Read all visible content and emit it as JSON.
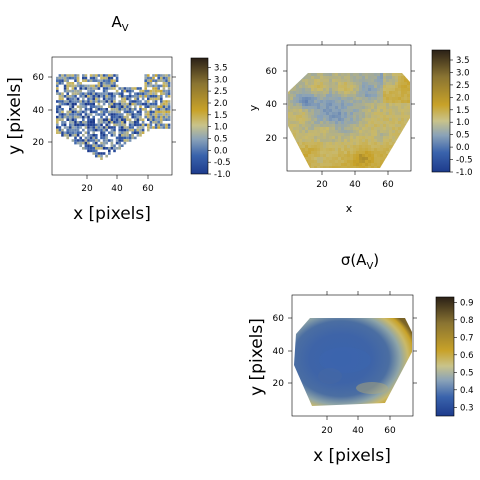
{
  "panels": [
    {
      "id": "av-raw",
      "title_main": "A",
      "title_sub": "V",
      "title_suffix": "",
      "xlabel": "x [pixels]",
      "ylabel": "y [pixels]",
      "xticks": [
        "20",
        "40",
        "60"
      ],
      "yticks": [
        "20",
        "40",
        "60"
      ],
      "colorbar": {
        "ticks": [
          "3.5",
          "3.0",
          "2.5",
          "2.0",
          "1.5",
          "1.0",
          "0.5",
          "0.0",
          "-0.5",
          "-1.0"
        ],
        "min": -1.0,
        "max": 3.9
      }
    },
    {
      "id": "av-smooth",
      "title_main": "",
      "title_sub": "",
      "title_suffix": "",
      "xlabel": "x",
      "ylabel": "y",
      "xticks": [
        "20",
        "40",
        "60"
      ],
      "yticks": [
        "20",
        "40",
        "60"
      ],
      "colorbar": {
        "ticks": [
          "3.5",
          "3.0",
          "2.5",
          "2.0",
          "1.5",
          "1.0",
          "0.5",
          "0.0",
          "-0.5",
          "-1.0"
        ],
        "min": -1.0,
        "max": 3.9
      }
    },
    {
      "id": "sigma-av",
      "title_main": "σ(A",
      "title_sub": "V",
      "title_suffix": ")",
      "xlabel": "x [pixels]",
      "ylabel": "y [pixels]",
      "xticks": [
        "20",
        "40",
        "60"
      ],
      "yticks": [
        "20",
        "40",
        "60"
      ],
      "colorbar": {
        "ticks": [
          "0.9",
          "0.8",
          "0.7",
          "0.6",
          "0.5",
          "0.4",
          "0.3"
        ],
        "min": 0.25,
        "max": 0.93
      }
    }
  ],
  "chart_data": [
    {
      "type": "heatmap",
      "title": "AV",
      "xlabel": "x [pixels]",
      "ylabel": "y [pixels]",
      "xlim": [
        0,
        75
      ],
      "ylim": [
        0,
        75
      ],
      "value_range": [
        -1.0,
        3.9
      ],
      "colormap": [
        "#1d3b8c",
        "#3a63ac",
        "#8aa2b8",
        "#c9b96a",
        "#c8a229",
        "#8a7432",
        "#2a2016"
      ],
      "description_values": "noisy per-pixel map, mostly -0.5 to 2.0; low values (blue) concentrated near x≈25, y≈30-40"
    },
    {
      "type": "heatmap",
      "title": "",
      "xlabel": "x",
      "ylabel": "y",
      "xlim": [
        0,
        75
      ],
      "ylim": [
        0,
        75
      ],
      "value_range": [
        -1.0,
        3.9
      ],
      "colormap": [
        "#1d3b8c",
        "#3a63ac",
        "#8aa2b8",
        "#c9b96a",
        "#c8a229",
        "#8a7432",
        "#2a2016"
      ]
    },
    {
      "type": "heatmap",
      "title": "σ(AV)",
      "xlabel": "x [pixels]",
      "ylabel": "y [pixels]",
      "xlim": [
        0,
        75
      ],
      "ylim": [
        0,
        75
      ],
      "value_range": [
        0.25,
        0.93
      ],
      "colormap": [
        "#1d3b8c",
        "#3a63ac",
        "#8aa2b8",
        "#c9b96a",
        "#c8a229",
        "#8a7432",
        "#2a2016"
      ]
    }
  ]
}
